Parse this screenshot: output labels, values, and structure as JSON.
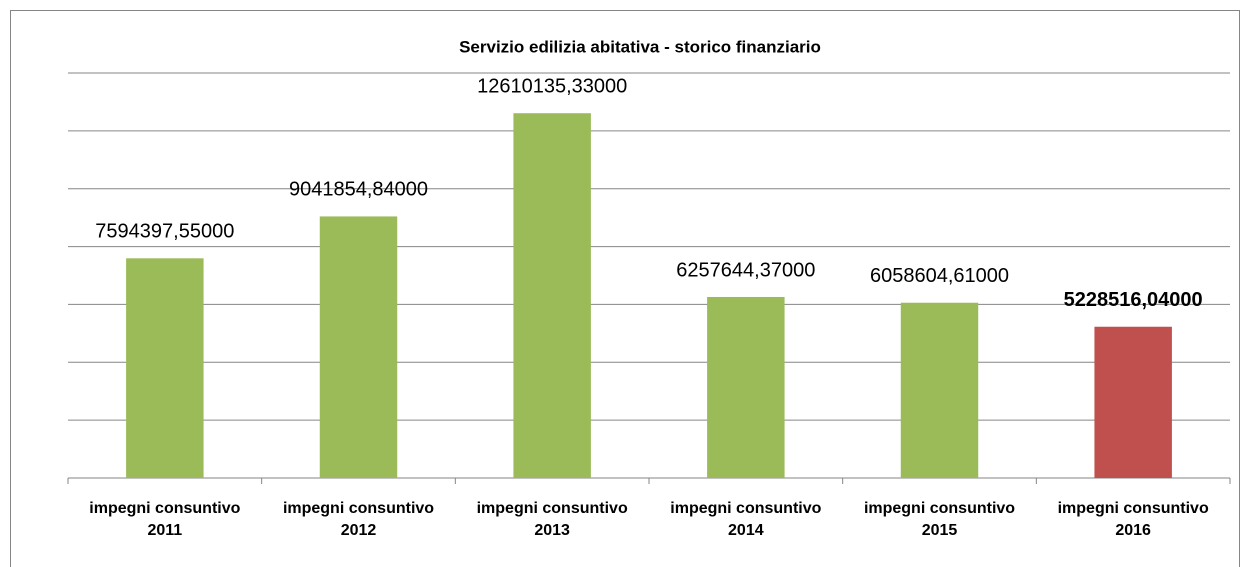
{
  "chart_data": {
    "type": "bar",
    "title": "Servizio edilizia abitativa - storico finanziario",
    "categories": [
      "impegni consuntivo 2011",
      "impegni consuntivo 2012",
      "impegni consuntivo 2013",
      "impegni consuntivo 2014",
      "impegni consuntivo 2015",
      "impegni consuntivo 2016"
    ],
    "values": [
      7594397.55,
      9041854.84,
      12610135.33,
      6257644.37,
      6058604.61,
      5228516.04
    ],
    "value_labels": [
      "7594397,55000",
      "9041854,84000",
      "12610135,33000",
      "6257644,37000",
      "6058604,61000",
      "5228516,04000"
    ],
    "colors": [
      "#9bbb59",
      "#9bbb59",
      "#9bbb59",
      "#9bbb59",
      "#9bbb59",
      "#c0504d"
    ],
    "value_labels_bold": [
      false,
      false,
      false,
      false,
      false,
      true
    ],
    "ylim": [
      0,
      14000000
    ],
    "yticks": [
      0,
      2000000,
      4000000,
      6000000,
      8000000,
      10000000,
      12000000,
      14000000
    ],
    "grid": true
  }
}
